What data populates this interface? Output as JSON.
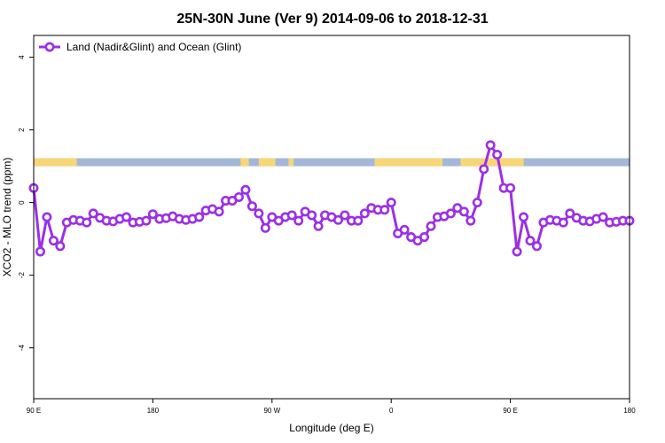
{
  "chart_data": {
    "type": "line",
    "title": "25N-30N June (Ver 9)   2014-09-06 to 2018-12-31",
    "xlabel": "Longitude (deg E)",
    "ylabel": "XCO2 - MLO trend (ppm)",
    "xlim": [
      90,
      450
    ],
    "ylim": [
      -5.4,
      4.6
    ],
    "x_ticks": [
      {
        "value": 90,
        "label": "90 E"
      },
      {
        "value": 162,
        "label": "180"
      },
      {
        "value": 234,
        "label": "90 W"
      },
      {
        "value": 306,
        "label": "0"
      },
      {
        "value": 378,
        "label": "90 E"
      },
      {
        "value": 450,
        "label": "180"
      }
    ],
    "y_ticks": [
      {
        "value": -4,
        "label": "-4"
      },
      {
        "value": -2,
        "label": "-2"
      },
      {
        "value": 0,
        "label": "0"
      },
      {
        "value": 2,
        "label": "2"
      },
      {
        "value": 4,
        "label": "4"
      }
    ],
    "grid": false,
    "legend_position": "top-left",
    "series": [
      {
        "name": "Land (Nadir&Glint) and Ocean (Glint)",
        "color": "#9b30e6",
        "x": [
          90,
          94,
          98,
          102,
          106,
          110,
          114,
          118,
          122,
          126,
          130,
          134,
          138,
          142,
          146,
          150,
          154,
          158,
          162,
          166,
          170,
          174,
          178,
          182,
          186,
          190,
          194,
          198,
          202,
          206,
          210,
          214,
          218,
          222,
          226,
          230,
          234,
          238,
          242,
          246,
          250,
          254,
          258,
          262,
          266,
          270,
          274,
          278,
          282,
          286,
          290,
          294,
          298,
          302,
          306,
          310,
          314,
          318,
          322,
          326,
          330,
          334,
          338,
          342,
          346,
          350,
          354,
          358,
          362,
          366,
          370,
          374,
          378,
          382,
          386,
          390,
          394,
          398,
          402,
          406,
          410,
          414,
          418,
          422,
          426,
          430,
          434,
          438,
          442,
          446,
          450
        ],
        "y": [
          0.4,
          -1.35,
          -0.4,
          -1.05,
          -1.2,
          -0.55,
          -0.48,
          -0.5,
          -0.55,
          -0.3,
          -0.42,
          -0.5,
          -0.52,
          -0.45,
          -0.4,
          -0.55,
          -0.53,
          -0.5,
          -0.32,
          -0.45,
          -0.43,
          -0.38,
          -0.45,
          -0.48,
          -0.45,
          -0.4,
          -0.22,
          -0.18,
          -0.25,
          0.05,
          0.05,
          0.15,
          0.35,
          -0.1,
          -0.3,
          -0.7,
          -0.4,
          -0.5,
          -0.4,
          -0.35,
          -0.5,
          -0.25,
          -0.35,
          -0.65,
          -0.35,
          -0.4,
          -0.48,
          -0.35,
          -0.5,
          -0.5,
          -0.3,
          -0.15,
          -0.2,
          -0.2,
          0.0,
          -0.85,
          -0.75,
          -0.95,
          -1.05,
          -0.95,
          -0.65,
          -0.4,
          -0.38,
          -0.3,
          -0.15,
          -0.25,
          -0.5,
          0.0,
          0.92,
          1.58,
          1.32,
          0.4,
          0.4,
          -1.35,
          -0.4,
          -1.05,
          -1.2,
          -0.55,
          -0.48,
          -0.5,
          -0.55,
          -0.3,
          -0.42,
          -0.5,
          -0.52,
          -0.45,
          -0.4,
          -0.55,
          -0.53,
          -0.5,
          -0.5
        ]
      }
    ],
    "surface_band": {
      "y_range": [
        1.0,
        1.22
      ],
      "land_color": "#f8d678",
      "ocean_color": "#a3b8d8",
      "land_segments": [
        [
          90,
          116
        ],
        [
          215,
          220
        ],
        [
          226,
          236
        ],
        [
          244,
          247
        ],
        [
          296,
          337
        ],
        [
          348,
          386
        ]
      ]
    }
  }
}
